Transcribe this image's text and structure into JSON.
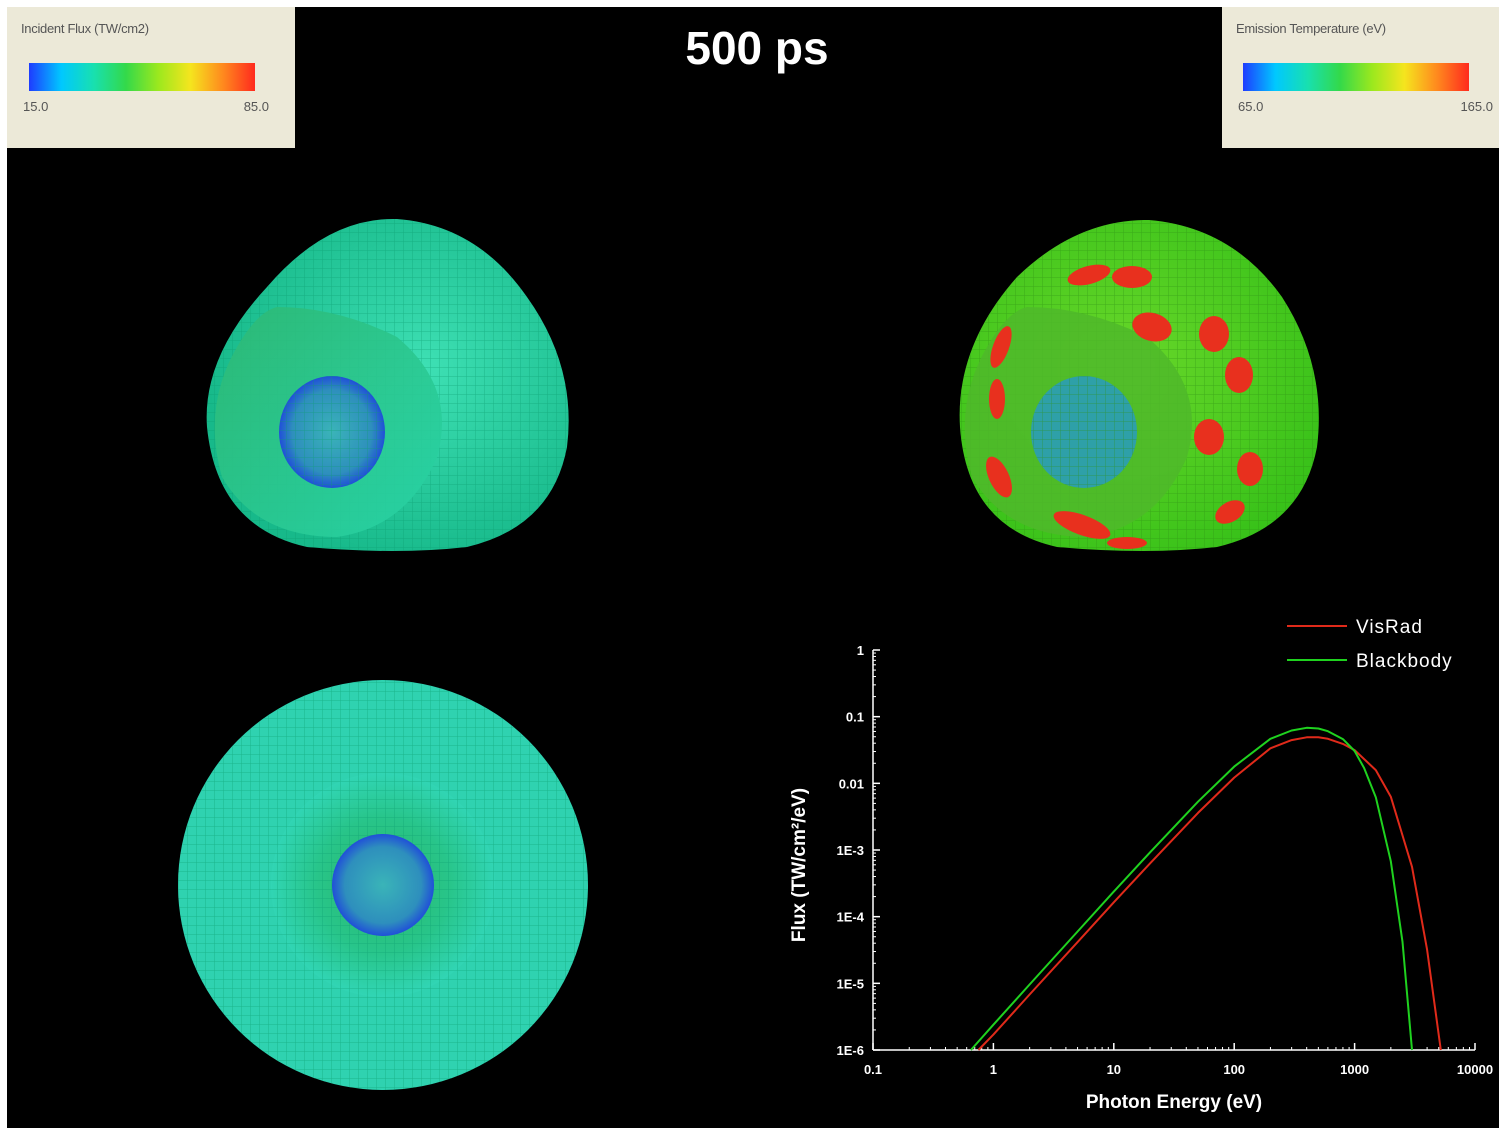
{
  "time_label": "500 ps",
  "flux_legend": {
    "title": "Incident Flux (TW/cm2)",
    "min_label": "15.0",
    "max_label": "85.0",
    "gradient": [
      "#1e3cff",
      "#00c8ff",
      "#18e0b0",
      "#33d94a",
      "#9be81e",
      "#f5e51e",
      "#ff8a1e",
      "#ff2a1e"
    ]
  },
  "temp_legend": {
    "title": "Emission Temperature (eV)",
    "min_label": "65.0",
    "max_label": "165.0",
    "gradient": [
      "#1e3cff",
      "#00c8ff",
      "#18e0b0",
      "#33d94a",
      "#9be81e",
      "#f5e51e",
      "#ff8a1e",
      "#ff2a1e"
    ]
  },
  "views": {
    "flux_view_side": "hohlraum-flux-oblique",
    "temp_view_side": "hohlraum-temperature-oblique",
    "flux_view_axial": "hohlraum-flux-axial"
  },
  "colors": {
    "background": "#000000",
    "flux_wall": "#22c98e",
    "temp_wall": "#3fc41c",
    "hot_spot": "#e8301e",
    "capsule": "#2e8fb8"
  },
  "chart_data": {
    "type": "line",
    "xlabel": "Photon Energy (eV)",
    "ylabel": "Flux (TW/cm²/eV)",
    "x_scale": "log",
    "y_scale": "log",
    "xlim": [
      0.1,
      10000
    ],
    "ylim": [
      1e-06,
      1
    ],
    "x_ticks": [
      "0.1",
      "1",
      "10",
      "100",
      "1000",
      "10000"
    ],
    "y_ticks": [
      "1",
      "0.1",
      "0.01",
      "1E-3",
      "1E-4",
      "1E-5",
      "1E-6"
    ],
    "legend_position": "top-right",
    "series": [
      {
        "name": "VisRad",
        "color": "#e02a1a",
        "x": [
          0.75,
          1,
          2,
          5,
          10,
          20,
          50,
          100,
          200,
          300,
          400,
          500,
          600,
          800,
          1000,
          1500,
          2000,
          3000,
          4000,
          5200
        ],
        "y": [
          1e-06,
          1.7e-06,
          6.8e-06,
          4.16e-05,
          0.000164,
          0.00063,
          0.0036,
          0.0122,
          0.0335,
          0.0445,
          0.049,
          0.049,
          0.0465,
          0.039,
          0.0315,
          0.0158,
          0.0063,
          0.00056,
          3.2e-05,
          1e-06
        ]
      },
      {
        "name": "Blackbody",
        "color": "#1fd21f",
        "x": [
          0.65,
          1,
          2,
          5,
          10,
          20,
          50,
          100,
          200,
          300,
          400,
          500,
          600,
          800,
          1000,
          1200,
          1500,
          2000,
          2500,
          3000
        ],
        "y": [
          1e-06,
          2.4e-06,
          9.6e-06,
          6e-05,
          0.000238,
          0.00092,
          0.0053,
          0.0178,
          0.0465,
          0.062,
          0.068,
          0.0665,
          0.0605,
          0.046,
          0.0305,
          0.017,
          0.0062,
          0.00068,
          4.2e-05,
          1e-06
        ]
      }
    ]
  }
}
